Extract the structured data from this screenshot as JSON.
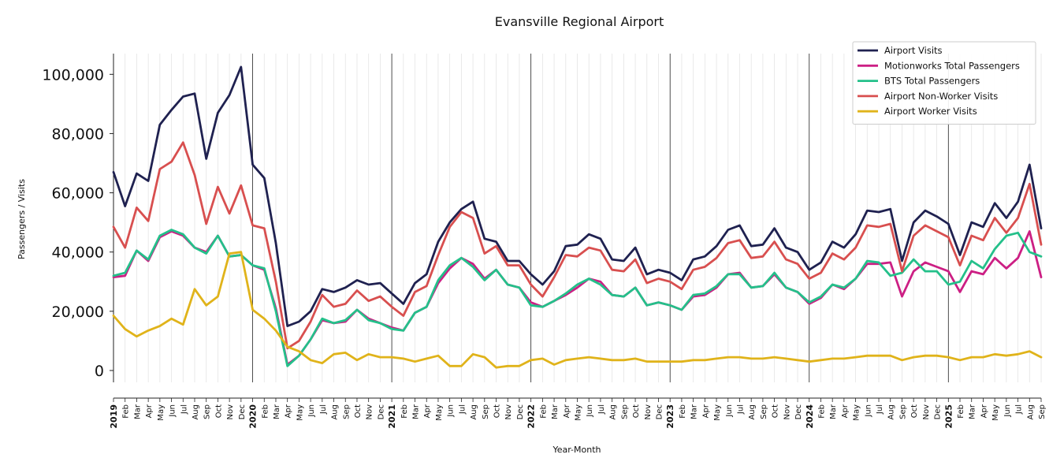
{
  "chart_data": {
    "type": "line",
    "title": "Evansville Regional Airport",
    "xlabel": "Year-Month",
    "ylabel": "Passengers / Visits",
    "ylim": [
      -4000,
      107000
    ],
    "yticks": [
      0,
      20000,
      40000,
      60000,
      80000,
      100000
    ],
    "ytick_labels": [
      "0",
      "20,000",
      "40,000",
      "60,000",
      "80,000",
      "100,000"
    ],
    "x_start": "2019-01",
    "x_end": "2025-09",
    "month_labels": [
      "Jan",
      "Feb",
      "Mar",
      "Apr",
      "May",
      "Jun",
      "Jul",
      "Aug",
      "Sep",
      "Oct",
      "Nov",
      "Dec"
    ],
    "grid": "vertical-monthly",
    "year_separators": true,
    "legend_position": "top-right",
    "series": [
      {
        "name": "Airport Visits",
        "color": "#1f2150",
        "values": [
          67000,
          55500,
          66500,
          64000,
          83000,
          88000,
          92500,
          93500,
          71500,
          87000,
          93000,
          102500,
          69500,
          65000,
          43000,
          15000,
          16500,
          20000,
          27500,
          26500,
          28000,
          30500,
          29000,
          29500,
          26000,
          22500,
          29500,
          32500,
          43500,
          50000,
          54500,
          57000,
          44500,
          43500,
          37000,
          37000,
          32500,
          29000,
          33500,
          42000,
          42500,
          46000,
          44500,
          37500,
          37000,
          41500,
          32500,
          34000,
          33000,
          30500,
          37500,
          38500,
          42000,
          47500,
          49000,
          42000,
          42500,
          48000,
          41500,
          40000,
          34000,
          36500,
          43500,
          41500,
          46000,
          54000,
          53500,
          54500,
          37000,
          50000,
          54000,
          52000,
          49500,
          39000,
          50000,
          48500,
          56500,
          51500,
          57000,
          69500,
          48000
        ]
      },
      {
        "name": "Motionworks Total Passengers",
        "color": "#cc1f84",
        "values": [
          31500,
          32000,
          40500,
          37000,
          45000,
          47000,
          45500,
          41500,
          40000,
          45500,
          38500,
          39000,
          35500,
          34000,
          21000,
          2000,
          5000,
          10500,
          17000,
          16000,
          16500,
          20500,
          17500,
          16000,
          14500,
          13500,
          19500,
          21500,
          29500,
          34500,
          38000,
          36000,
          31000,
          34000,
          29000,
          28000,
          23000,
          21500,
          23500,
          25500,
          28000,
          31000,
          30000,
          25500,
          25000,
          28000,
          22000,
          23000,
          22000,
          20500,
          25000,
          25500,
          28000,
          32500,
          33000,
          28000,
          28500,
          32500,
          28000,
          26500,
          22500,
          24500,
          29000,
          27500,
          31000,
          36000,
          36000,
          36500,
          25000,
          33500,
          36500,
          35000,
          33500,
          26500,
          33500,
          32500,
          38000,
          34500,
          38000,
          47000,
          31500
        ]
      },
      {
        "name": "BTS Total Passengers",
        "color": "#24c08a",
        "values": [
          32000,
          33000,
          40500,
          37500,
          45500,
          47500,
          46000,
          41500,
          39500,
          45500,
          38500,
          39000,
          35500,
          34500,
          20000,
          1500,
          5000,
          10500,
          17500,
          16000,
          17000,
          20500,
          17000,
          16000,
          14000,
          13500,
          19500,
          21500,
          30500,
          35500,
          38000,
          35000,
          30500,
          34000,
          29000,
          28000,
          22000,
          21500,
          23500,
          26000,
          29000,
          31000,
          29000,
          25500,
          25000,
          28000,
          22000,
          23000,
          22000,
          20500,
          25500,
          26000,
          28500,
          32500,
          32500,
          28000,
          28500,
          33000,
          28000,
          26500,
          23000,
          25000,
          29000,
          28000,
          31000,
          37000,
          36500,
          32000,
          33000,
          37500,
          33500,
          33500,
          29000,
          30000,
          37000,
          34500,
          41000,
          45500,
          46500,
          40000,
          38500
        ]
      },
      {
        "name": "Airport Non-Worker Visits",
        "color": "#d84f4f",
        "values": [
          48500,
          41500,
          55000,
          50500,
          68000,
          70500,
          77000,
          66000,
          49500,
          62000,
          53000,
          62500,
          49000,
          48000,
          30000,
          7500,
          10000,
          16500,
          25500,
          21500,
          22500,
          27000,
          23500,
          25000,
          21500,
          18500,
          26500,
          28500,
          39000,
          48500,
          53500,
          51500,
          39500,
          42000,
          35500,
          35500,
          29000,
          25000,
          31500,
          39000,
          38500,
          41500,
          40500,
          34000,
          33500,
          37500,
          29500,
          31000,
          30000,
          27500,
          34000,
          35000,
          38000,
          43000,
          44000,
          38000,
          38500,
          43500,
          37500,
          36000,
          31000,
          33000,
          39500,
          37500,
          41500,
          49000,
          48500,
          49500,
          33500,
          45500,
          49000,
          47000,
          45000,
          35500,
          45500,
          44000,
          51500,
          46500,
          51500,
          63000,
          42500
        ]
      },
      {
        "name": "Airport Worker Visits",
        "color": "#e0b31a",
        "values": [
          18500,
          14000,
          11500,
          13500,
          15000,
          17500,
          15500,
          27500,
          22000,
          25000,
          39500,
          40000,
          20500,
          17500,
          13500,
          8000,
          6500,
          3500,
          2500,
          5500,
          6000,
          3500,
          5500,
          4500,
          4500,
          4000,
          3000,
          4000,
          5000,
          1500,
          1500,
          5500,
          4500,
          1000,
          1500,
          1500,
          3500,
          4000,
          2000,
          3500,
          4000,
          4500,
          4000,
          3500,
          3500,
          4000,
          3000,
          3000,
          3000,
          3000,
          3500,
          3500,
          4000,
          4500,
          4500,
          4000,
          4000,
          4500,
          4000,
          3500,
          3000,
          3500,
          4000,
          4000,
          4500,
          5000,
          5000,
          5000,
          3500,
          4500,
          5000,
          5000,
          4500,
          3500,
          4500,
          4500,
          5500,
          5000,
          5500,
          6500,
          4500
        ]
      }
    ]
  }
}
